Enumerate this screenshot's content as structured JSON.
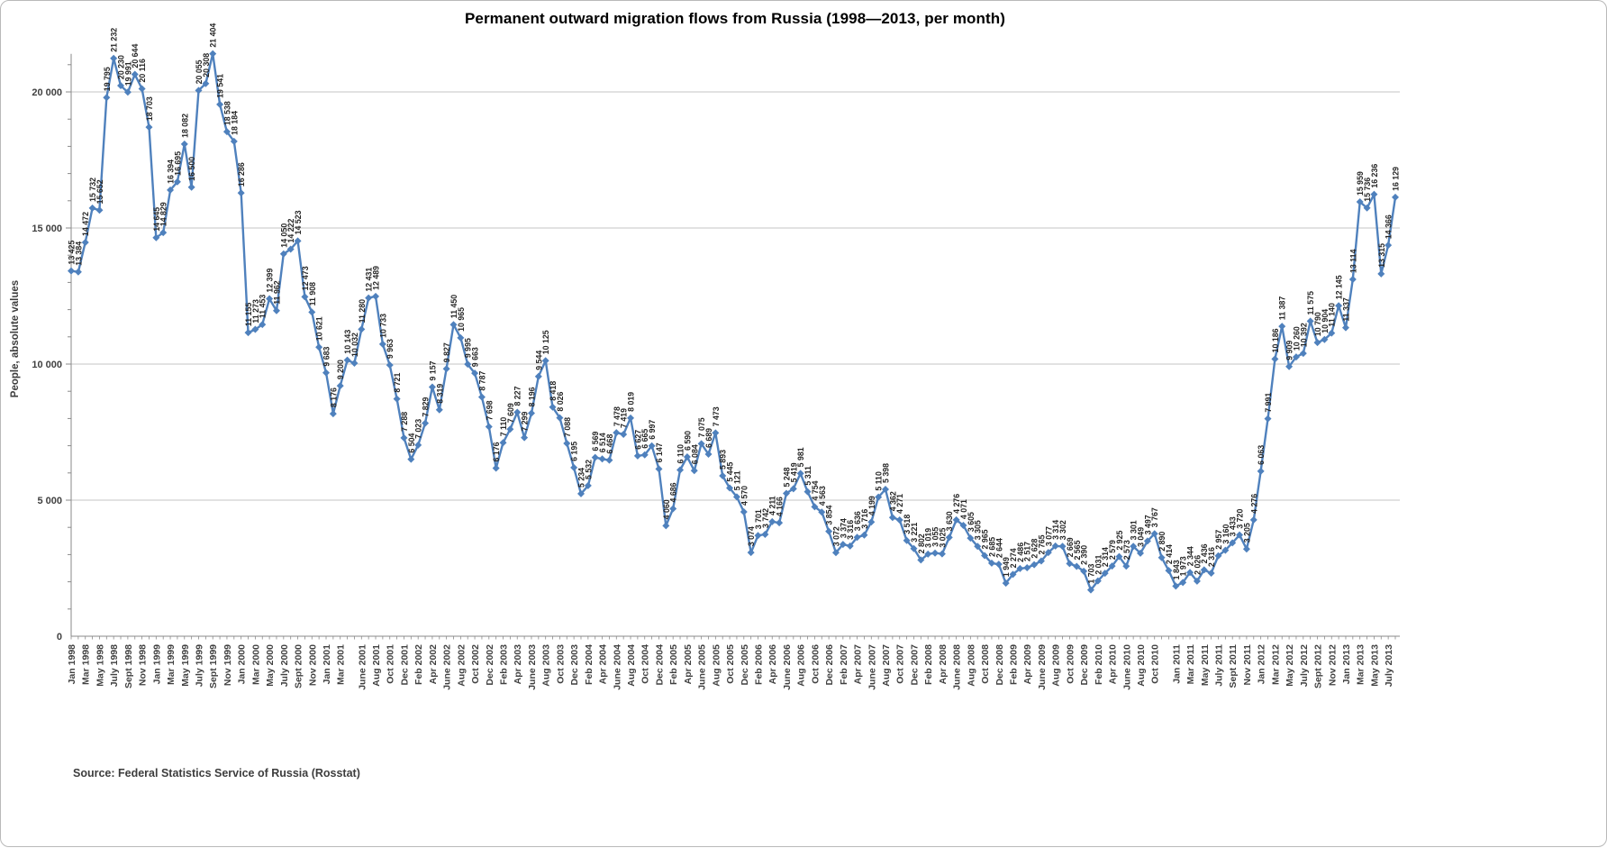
{
  "chart": {
    "title": "Permanent outward migration flows from Russia (1998—2013, per month)",
    "y_axis_title": "People, absolute values",
    "source_note": "Source: Federal Statistics Service of Russia (Rosstat)",
    "accent_color": "#4F81BD",
    "gridline_color": "#C6C6C6",
    "axis_color": "#8a8a8a",
    "tick_label_color": "#404040",
    "data_label_color": "#262626"
  },
  "chart_data": {
    "type": "line",
    "frequency": "monthly",
    "x_start": "Jan 1998",
    "x_end": "Aug 2013",
    "legend": "none",
    "grid": "horizontal",
    "marker": "diamond",
    "data_labels": "all points, rotated 90, space thousands separator",
    "ylim": [
      0,
      21500
    ],
    "y_ticks": [
      0,
      5000,
      10000,
      15000,
      20000
    ],
    "y_tick_labels": [
      "0",
      "5 000",
      "10 000",
      "15 000",
      "20 000"
    ],
    "y_minor_tick_step": 1000,
    "values": [
      13425,
      13384,
      14472,
      15732,
      15652,
      19795,
      21232,
      20230,
      19991,
      20644,
      20116,
      18703,
      14645,
      14829,
      16394,
      16695,
      18082,
      16500,
      20055,
      20308,
      21404,
      19541,
      18538,
      18184,
      16286,
      11155,
      11273,
      11453,
      12399,
      11962,
      14050,
      14222,
      14523,
      12473,
      11908,
      10621,
      9683,
      8176,
      9200,
      10143,
      10032,
      11280,
      12431,
      12489,
      10733,
      9963,
      8721,
      7288,
      6504,
      7023,
      7829,
      9157,
      8319,
      9827,
      11450,
      10965,
      9995,
      9663,
      8787,
      7698,
      6176,
      7110,
      7609,
      8227,
      7299,
      8196,
      9544,
      10125,
      8418,
      8026,
      7088,
      6195,
      5234,
      5532,
      6569,
      6514,
      6468,
      7478,
      7419,
      8019,
      6627,
      6665,
      6997,
      6147,
      4060,
      4686,
      6110,
      6590,
      6084,
      7075,
      6689,
      7473,
      5893,
      5445,
      5121,
      4570,
      3074,
      3701,
      3742,
      4211,
      4166,
      5248,
      5419,
      5981,
      5311,
      4754,
      4563,
      3854,
      3072,
      3374,
      3316,
      3636,
      3716,
      4199,
      5110,
      5398,
      4362,
      4271,
      3518,
      3221,
      2802,
      3019,
      3055,
      3025,
      3630,
      4276,
      4071,
      3605,
      3305,
      2965,
      2685,
      2644,
      1949,
      2274,
      2486,
      2517,
      2628,
      2765,
      3077,
      3314,
      3302,
      2669,
      2565,
      2390,
      1703,
      2031,
      2314,
      2579,
      2925,
      2573,
      3301,
      3049,
      3497,
      3767,
      2890,
      2414,
      1843,
      1973,
      2344,
      2026,
      2436,
      2316,
      2957,
      3160,
      3433,
      3720,
      3205,
      4276,
      6063,
      7991,
      10186,
      11387,
      9909,
      10260,
      10392,
      11575,
      10790,
      10904,
      11140,
      12145,
      11337,
      13114,
      15959,
      15736,
      16236,
      13315,
      14366,
      16129
    ],
    "x_tick_labels": [
      "Jan 1998",
      "Mar 1998",
      "May 1998",
      "July 1998",
      "Sept 1998",
      "Nov 1998",
      "Jan 1999",
      "Mar 1999",
      "May 1999",
      "July 1999",
      "Sept 1999",
      "Nov 1999",
      "Jan 2000",
      "Mar 2000",
      "May 2000",
      "July 2000",
      "Sept 2000",
      "Nov 2000",
      "Jan 2001",
      "Mar 2001",
      "June 2001",
      "Aug 2001",
      "Oct 2001",
      "Dec 2001",
      "Feb 2002",
      "Apr 2002",
      "June 2002",
      "Aug 2002",
      "Oct 2002",
      "Dec 2002",
      "Feb 2003",
      "Apr 2003",
      "June 2003",
      "Aug 2003",
      "Oct 2003",
      "Dec 2003",
      "Feb 2004",
      "Apr 2004",
      "June 2004",
      "Aug 2004",
      "Oct 2004",
      "Dec 2004",
      "Feb 2005",
      "Apr 2005",
      "June 2005",
      "Aug 2005",
      "Oct 2005",
      "Dec 2005",
      "Feb 2006",
      "Apr 2006",
      "June 2006",
      "Aug 2006",
      "Oct 2006",
      "Dec 2006",
      "Feb 2007",
      "Apr 2007",
      "June 2007",
      "Aug 2007",
      "Oct 2007",
      "Dec 2007",
      "Feb 2008",
      "Apr 2008",
      "June 2008",
      "Aug 2008",
      "Oct 2008",
      "Dec 2008",
      "Feb 2009",
      "Apr 2009",
      "June 2009",
      "Aug 2009",
      "Oct 2009",
      "Dec 2009",
      "Feb 2010",
      "Apr 2010",
      "June 2010",
      "Aug 2010",
      "Oct 2010",
      "Jan 2011",
      "Mar 2011",
      "May 2011",
      "July 2011",
      "Sept 2011",
      "Nov 2011",
      "Jan 2012",
      "Mar 2012",
      "May 2012",
      "July 2012",
      "Sept 2012",
      "Nov 2012",
      "Jan 2013",
      "Mar 2013",
      "May 2013",
      "July 2013"
    ],
    "x_tick_month_indices": [
      0,
      2,
      4,
      6,
      8,
      10,
      12,
      14,
      16,
      18,
      20,
      22,
      24,
      26,
      28,
      30,
      32,
      34,
      36,
      38,
      41,
      43,
      45,
      47,
      49,
      51,
      53,
      55,
      57,
      59,
      61,
      63,
      65,
      67,
      69,
      71,
      73,
      75,
      77,
      79,
      81,
      83,
      85,
      87,
      89,
      91,
      93,
      95,
      97,
      99,
      101,
      103,
      105,
      107,
      109,
      111,
      113,
      115,
      117,
      119,
      121,
      123,
      125,
      127,
      129,
      131,
      133,
      135,
      137,
      139,
      141,
      143,
      145,
      147,
      149,
      151,
      153,
      156,
      158,
      160,
      162,
      164,
      166,
      168,
      170,
      172,
      174,
      176,
      178,
      180,
      182,
      184,
      186
    ]
  }
}
